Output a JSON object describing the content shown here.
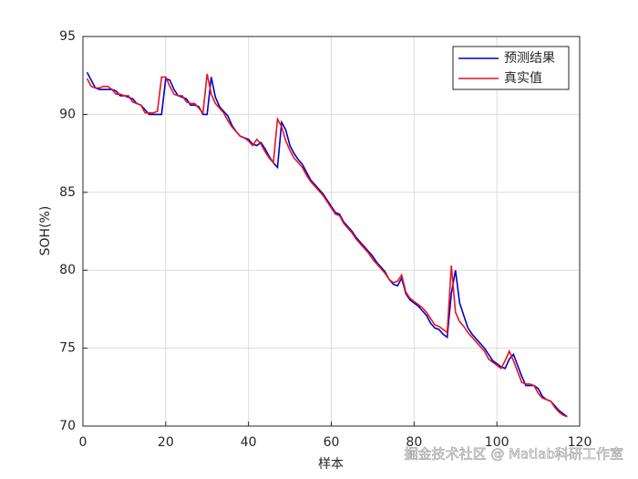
{
  "chart_data": {
    "type": "line",
    "xlabel": "样本",
    "ylabel": "SOH(%)",
    "x": [
      1,
      2,
      3,
      4,
      5,
      6,
      7,
      8,
      9,
      10,
      11,
      12,
      13,
      14,
      15,
      16,
      17,
      18,
      19,
      20,
      21,
      22,
      23,
      24,
      25,
      26,
      27,
      28,
      29,
      30,
      31,
      32,
      33,
      34,
      35,
      36,
      37,
      38,
      39,
      40,
      41,
      42,
      43,
      44,
      45,
      46,
      47,
      48,
      49,
      50,
      51,
      52,
      53,
      54,
      55,
      56,
      57,
      58,
      59,
      60,
      61,
      62,
      63,
      64,
      65,
      66,
      67,
      68,
      69,
      70,
      71,
      72,
      73,
      74,
      75,
      76,
      77,
      78,
      79,
      80,
      81,
      82,
      83,
      84,
      85,
      86,
      87,
      88,
      89,
      90,
      91,
      92,
      93,
      94,
      95,
      96,
      97,
      98,
      99,
      100,
      101,
      102,
      103,
      104,
      105,
      106,
      107,
      108,
      109,
      110,
      111,
      112,
      113,
      114,
      115,
      116,
      117
    ],
    "series": [
      {
        "name": "预测结果",
        "color": "#0000cd",
        "values": [
          92.7,
          92.2,
          91.7,
          91.6,
          91.6,
          91.6,
          91.6,
          91.5,
          91.2,
          91.2,
          91.1,
          91.0,
          90.7,
          90.6,
          90.3,
          90.0,
          90.0,
          90.0,
          90.0,
          92.3,
          92.2,
          91.6,
          91.2,
          91.1,
          91.0,
          90.6,
          90.6,
          90.5,
          90.0,
          90.0,
          92.4,
          91.1,
          90.5,
          90.2,
          89.9,
          89.3,
          88.9,
          88.6,
          88.5,
          88.4,
          88.1,
          88.0,
          88.2,
          87.8,
          87.3,
          86.9,
          86.6,
          89.5,
          89.0,
          88.0,
          87.5,
          87.1,
          86.8,
          86.3,
          85.8,
          85.5,
          85.2,
          84.9,
          84.5,
          84.1,
          83.7,
          83.6,
          83.1,
          82.8,
          82.5,
          82.1,
          81.8,
          81.5,
          81.2,
          80.9,
          80.5,
          80.2,
          79.9,
          79.4,
          79.1,
          79.0,
          79.5,
          78.5,
          78.1,
          77.9,
          77.7,
          77.4,
          77.1,
          76.6,
          76.3,
          76.2,
          75.9,
          75.7,
          78.5,
          80.0,
          77.9,
          77.1,
          76.3,
          75.9,
          75.6,
          75.3,
          75.0,
          74.6,
          74.2,
          74.0,
          73.8,
          73.7,
          74.3,
          74.6,
          73.9,
          73.2,
          72.6,
          72.6,
          72.6,
          72.4,
          71.9,
          71.7,
          71.6,
          71.3,
          71.0,
          70.8,
          70.6
        ]
      },
      {
        "name": "真实值",
        "color": "#e8141b",
        "values": [
          92.3,
          91.8,
          91.7,
          91.7,
          91.8,
          91.8,
          91.6,
          91.3,
          91.3,
          91.2,
          91.2,
          90.8,
          90.7,
          90.6,
          90.1,
          90.1,
          90.1,
          90.2,
          92.4,
          92.4,
          91.8,
          91.3,
          91.2,
          91.2,
          90.8,
          90.7,
          90.7,
          90.4,
          90.1,
          92.6,
          91.3,
          90.7,
          90.4,
          90.1,
          89.6,
          89.2,
          88.9,
          88.6,
          88.5,
          88.3,
          88.0,
          88.4,
          88.1,
          87.6,
          87.2,
          86.9,
          89.7,
          89.2,
          88.3,
          87.7,
          87.2,
          86.9,
          86.6,
          86.1,
          85.7,
          85.4,
          85.1,
          84.8,
          84.4,
          84.0,
          83.6,
          83.5,
          83.0,
          82.7,
          82.4,
          82.0,
          81.7,
          81.4,
          81.1,
          80.7,
          80.4,
          80.1,
          79.8,
          79.4,
          79.2,
          79.3,
          79.7,
          78.6,
          78.2,
          78.0,
          77.8,
          77.6,
          77.3,
          76.9,
          76.5,
          76.4,
          76.2,
          76.0,
          80.3,
          77.3,
          76.7,
          76.4,
          76.0,
          75.7,
          75.4,
          75.1,
          74.8,
          74.3,
          74.1,
          73.9,
          73.7,
          74.2,
          74.8,
          74.2,
          73.5,
          72.8,
          72.7,
          72.7,
          72.6,
          72.1,
          71.8,
          71.7,
          71.6,
          71.2,
          70.9,
          70.7,
          70.6
        ]
      }
    ],
    "xlim": [
      0,
      120
    ],
    "xticks": [
      0,
      20,
      40,
      60,
      80,
      100,
      120
    ],
    "ylim": [
      70,
      95
    ],
    "yticks": [
      70,
      75,
      80,
      85,
      90,
      95
    ],
    "grid": true,
    "legend": "northeast",
    "watermark": "掘金技术社区 @ Matlab科研工作室"
  }
}
